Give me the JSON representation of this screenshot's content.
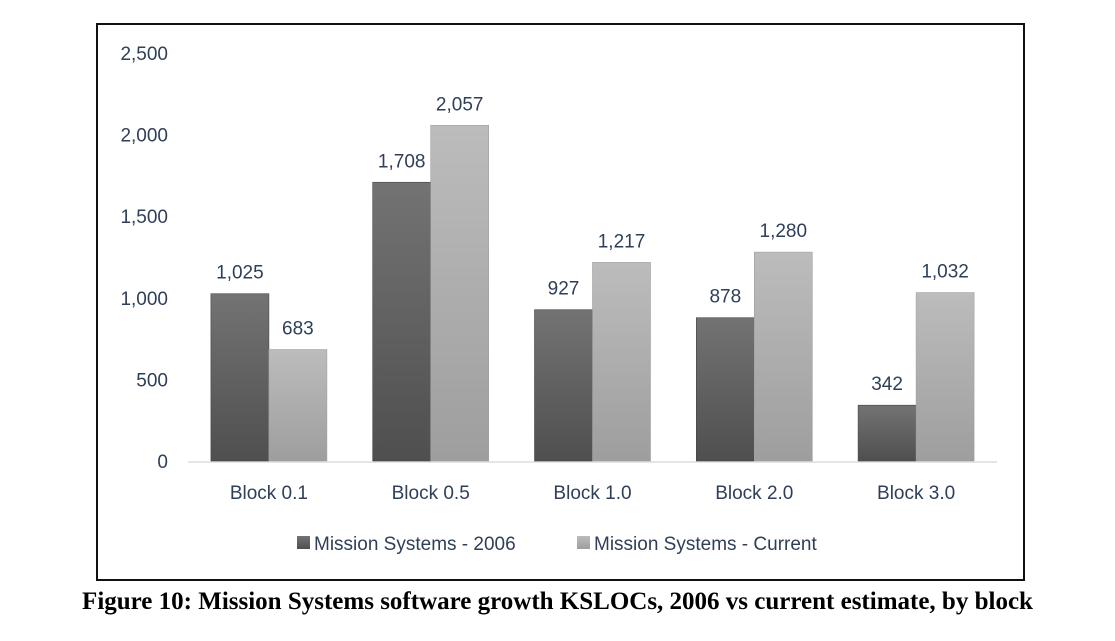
{
  "caption": "Figure 10: Mission Systems software growth KSLOCs, 2006 vs current estimate, by block",
  "chart_data": {
    "type": "bar",
    "title": "",
    "xlabel": "",
    "ylabel": "",
    "categories": [
      "Block 0.1",
      "Block 0.5",
      "Block 1.0",
      "Block 2.0",
      "Block 3.0"
    ],
    "series": [
      {
        "name": "Mission Systems - 2006",
        "values": [
          1025,
          1708,
          927,
          878,
          342
        ],
        "labels": [
          "1,025",
          "1,708",
          "927",
          "878",
          "342"
        ],
        "color_top": "#737373",
        "color_bottom": "#4f4f4f"
      },
      {
        "name": "Mission Systems - Current",
        "values": [
          683,
          2057,
          1217,
          1280,
          1032
        ],
        "labels": [
          "683",
          "2,057",
          "1,217",
          "1,280",
          "1,032"
        ],
        "color_top": "#bcbcbc",
        "color_bottom": "#9e9e9e"
      }
    ],
    "ylim": [
      0,
      2500
    ],
    "yticks": [
      0,
      500,
      1000,
      1500,
      2000,
      2500
    ],
    "ytick_labels": [
      "0",
      "500",
      "1,000",
      "1,500",
      "2,000",
      "2,500"
    ],
    "grid": false,
    "legend_position": "bottom",
    "text_color": "#2e3f57"
  }
}
